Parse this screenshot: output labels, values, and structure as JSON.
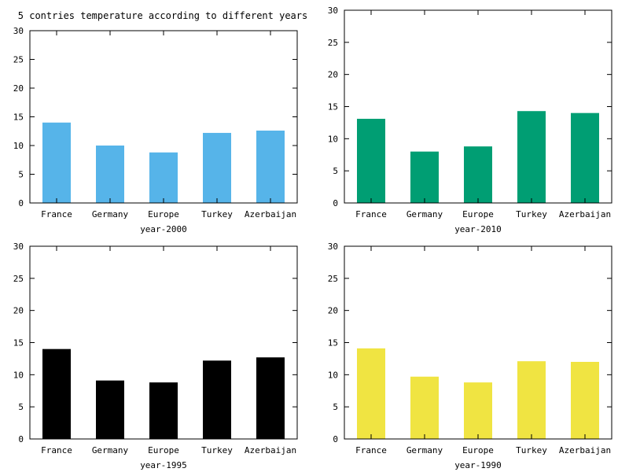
{
  "figure_title": "5 contries temperature according to different years",
  "chart_data": [
    {
      "type": "bar",
      "categories": [
        "France",
        "Germany",
        "Europe",
        "Turkey",
        "Azerbaijan"
      ],
      "values": [
        14.0,
        10.0,
        8.8,
        12.2,
        12.6
      ],
      "color": "#56b4e9",
      "xlabel": "year-2000",
      "ylabel": "",
      "ylim": [
        0,
        30
      ],
      "yticks": [
        0,
        5,
        10,
        15,
        20,
        25,
        30
      ],
      "grid": false
    },
    {
      "type": "bar",
      "categories": [
        "France",
        "Germany",
        "Europe",
        "Turkey",
        "Azerbaijan"
      ],
      "values": [
        13.1,
        8.0,
        8.8,
        14.3,
        14.0
      ],
      "color": "#009e73",
      "xlabel": "year-2010",
      "ylabel": "",
      "ylim": [
        0,
        30
      ],
      "yticks": [
        0,
        5,
        10,
        15,
        20,
        25,
        30
      ],
      "grid": false
    },
    {
      "type": "bar",
      "categories": [
        "France",
        "Germany",
        "Europe",
        "Turkey",
        "Azerbaijan"
      ],
      "values": [
        14.0,
        9.1,
        8.8,
        12.2,
        12.7
      ],
      "color": "#000000",
      "xlabel": "year-1995",
      "ylabel": "",
      "ylim": [
        0,
        30
      ],
      "yticks": [
        0,
        5,
        10,
        15,
        20,
        25,
        30
      ],
      "grid": false
    },
    {
      "type": "bar",
      "categories": [
        "France",
        "Germany",
        "Europe",
        "Turkey",
        "Azerbaijan"
      ],
      "values": [
        14.1,
        9.7,
        8.8,
        12.1,
        12.0
      ],
      "color": "#f0e442",
      "xlabel": "year-1990",
      "ylabel": "",
      "ylim": [
        0,
        30
      ],
      "yticks": [
        0,
        5,
        10,
        15,
        20,
        25,
        30
      ],
      "grid": false
    }
  ]
}
